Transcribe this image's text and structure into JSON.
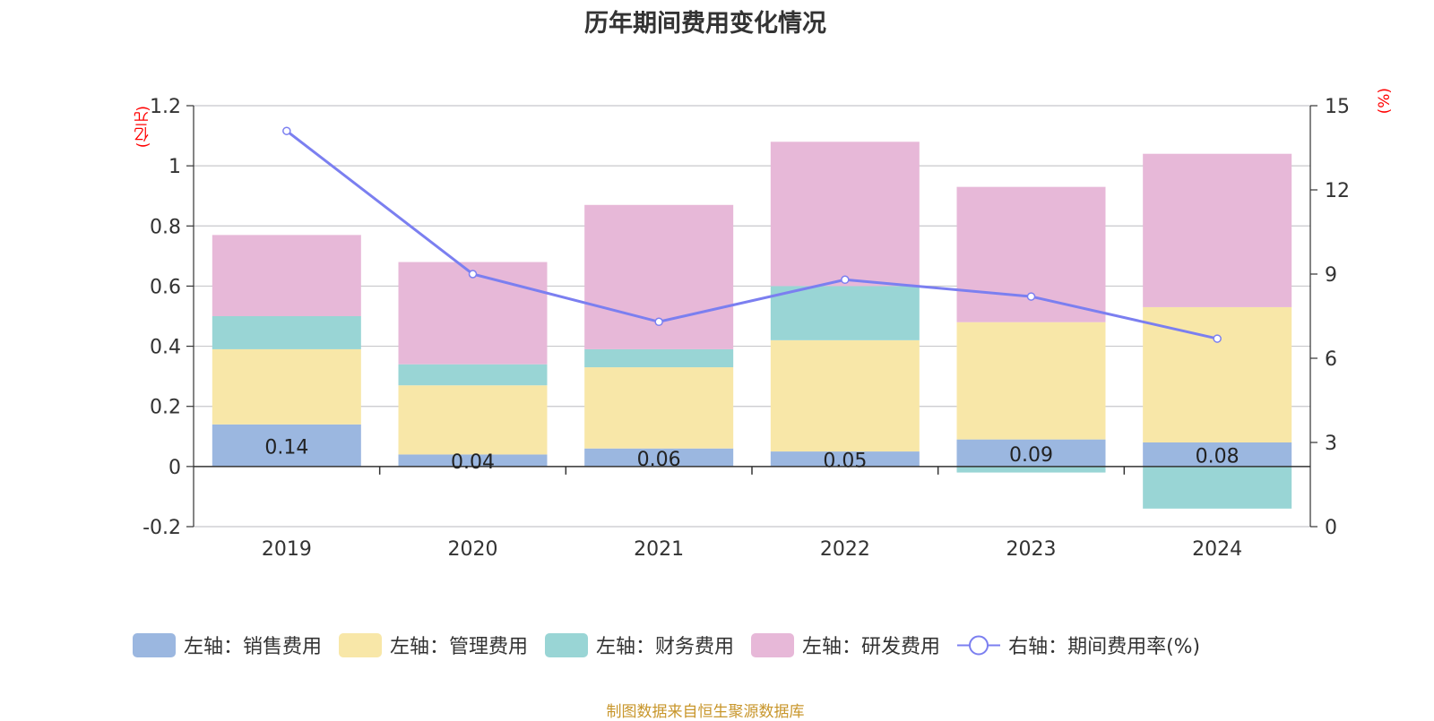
{
  "chart_data": {
    "type": "bar",
    "title": "历年期间费用变化情况",
    "categories": [
      "2019",
      "2020",
      "2021",
      "2022",
      "2023",
      "2024"
    ],
    "left_axis": {
      "unit": "(亿元)",
      "ylim": [
        -0.2,
        1.2
      ],
      "ticks": [
        -0.2,
        0,
        0.2,
        0.4,
        0.6,
        0.8,
        1,
        1.2
      ]
    },
    "right_axis": {
      "unit": "(%)",
      "ylim": [
        0,
        15
      ],
      "ticks": [
        0,
        3,
        6,
        9,
        12,
        15
      ]
    },
    "series": [
      {
        "name": "左轴：销售费用",
        "kind": "stacked-bar",
        "color": "#9bb7e0",
        "values": [
          0.14,
          0.04,
          0.06,
          0.05,
          0.09,
          0.08
        ],
        "labels": [
          "0.14",
          "0.04",
          "0.06",
          "0.05",
          "0.09",
          "0.08"
        ]
      },
      {
        "name": "左轴：管理费用",
        "kind": "stacked-bar",
        "color": "#f8e7a8",
        "values": [
          0.25,
          0.23,
          0.27,
          0.37,
          0.39,
          0.45
        ]
      },
      {
        "name": "左轴：财务费用",
        "kind": "stacked-bar",
        "color": "#99d5d5",
        "values": [
          0.11,
          0.07,
          0.06,
          0.18,
          -0.02,
          -0.14
        ]
      },
      {
        "name": "左轴：研发费用",
        "kind": "stacked-bar",
        "color": "#e7b8d8",
        "values": [
          0.27,
          0.34,
          0.48,
          0.48,
          0.45,
          0.51
        ]
      },
      {
        "name": "右轴：期间费用率(%)",
        "kind": "line",
        "axis": "right",
        "color": "#7b7ff0",
        "values": [
          14.1,
          9.0,
          7.3,
          8.8,
          8.2,
          6.7
        ]
      }
    ],
    "grid": true,
    "legend_position": "bottom",
    "source": "制图数据来自恒生聚源数据库"
  }
}
